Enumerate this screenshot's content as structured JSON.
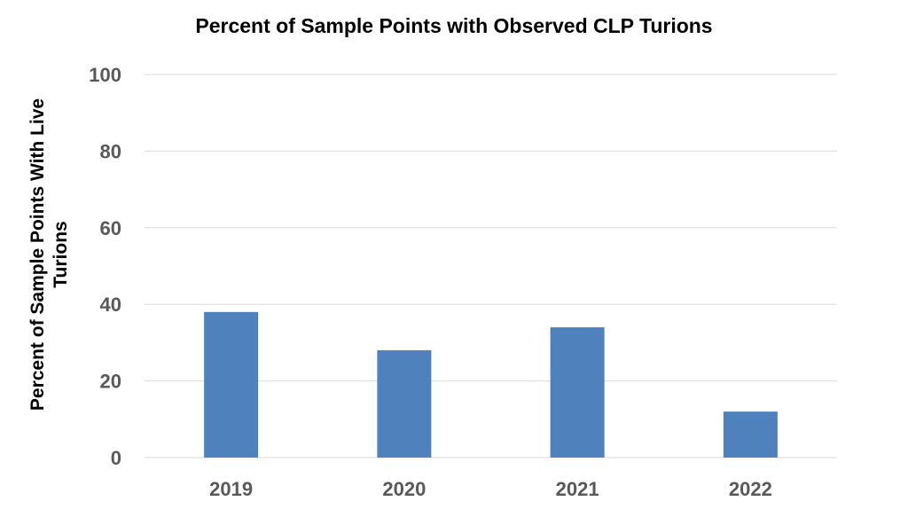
{
  "chart_data": {
    "type": "bar",
    "title": "Percent of Sample Points with Observed CLP Turions",
    "xlabel": "",
    "ylabel": "Percent of Sample Points With Live Turions",
    "categories": [
      "2019",
      "2020",
      "2021",
      "2022"
    ],
    "values": [
      38,
      28,
      34,
      12
    ],
    "ylim": [
      0,
      100
    ],
    "yticks": [
      0,
      20,
      40,
      60,
      80,
      100
    ],
    "grid": true,
    "legend": "none",
    "colors": {
      "bar": "#4f81bd",
      "grid": "#d9d9d9",
      "tick_text": "#595959"
    }
  }
}
